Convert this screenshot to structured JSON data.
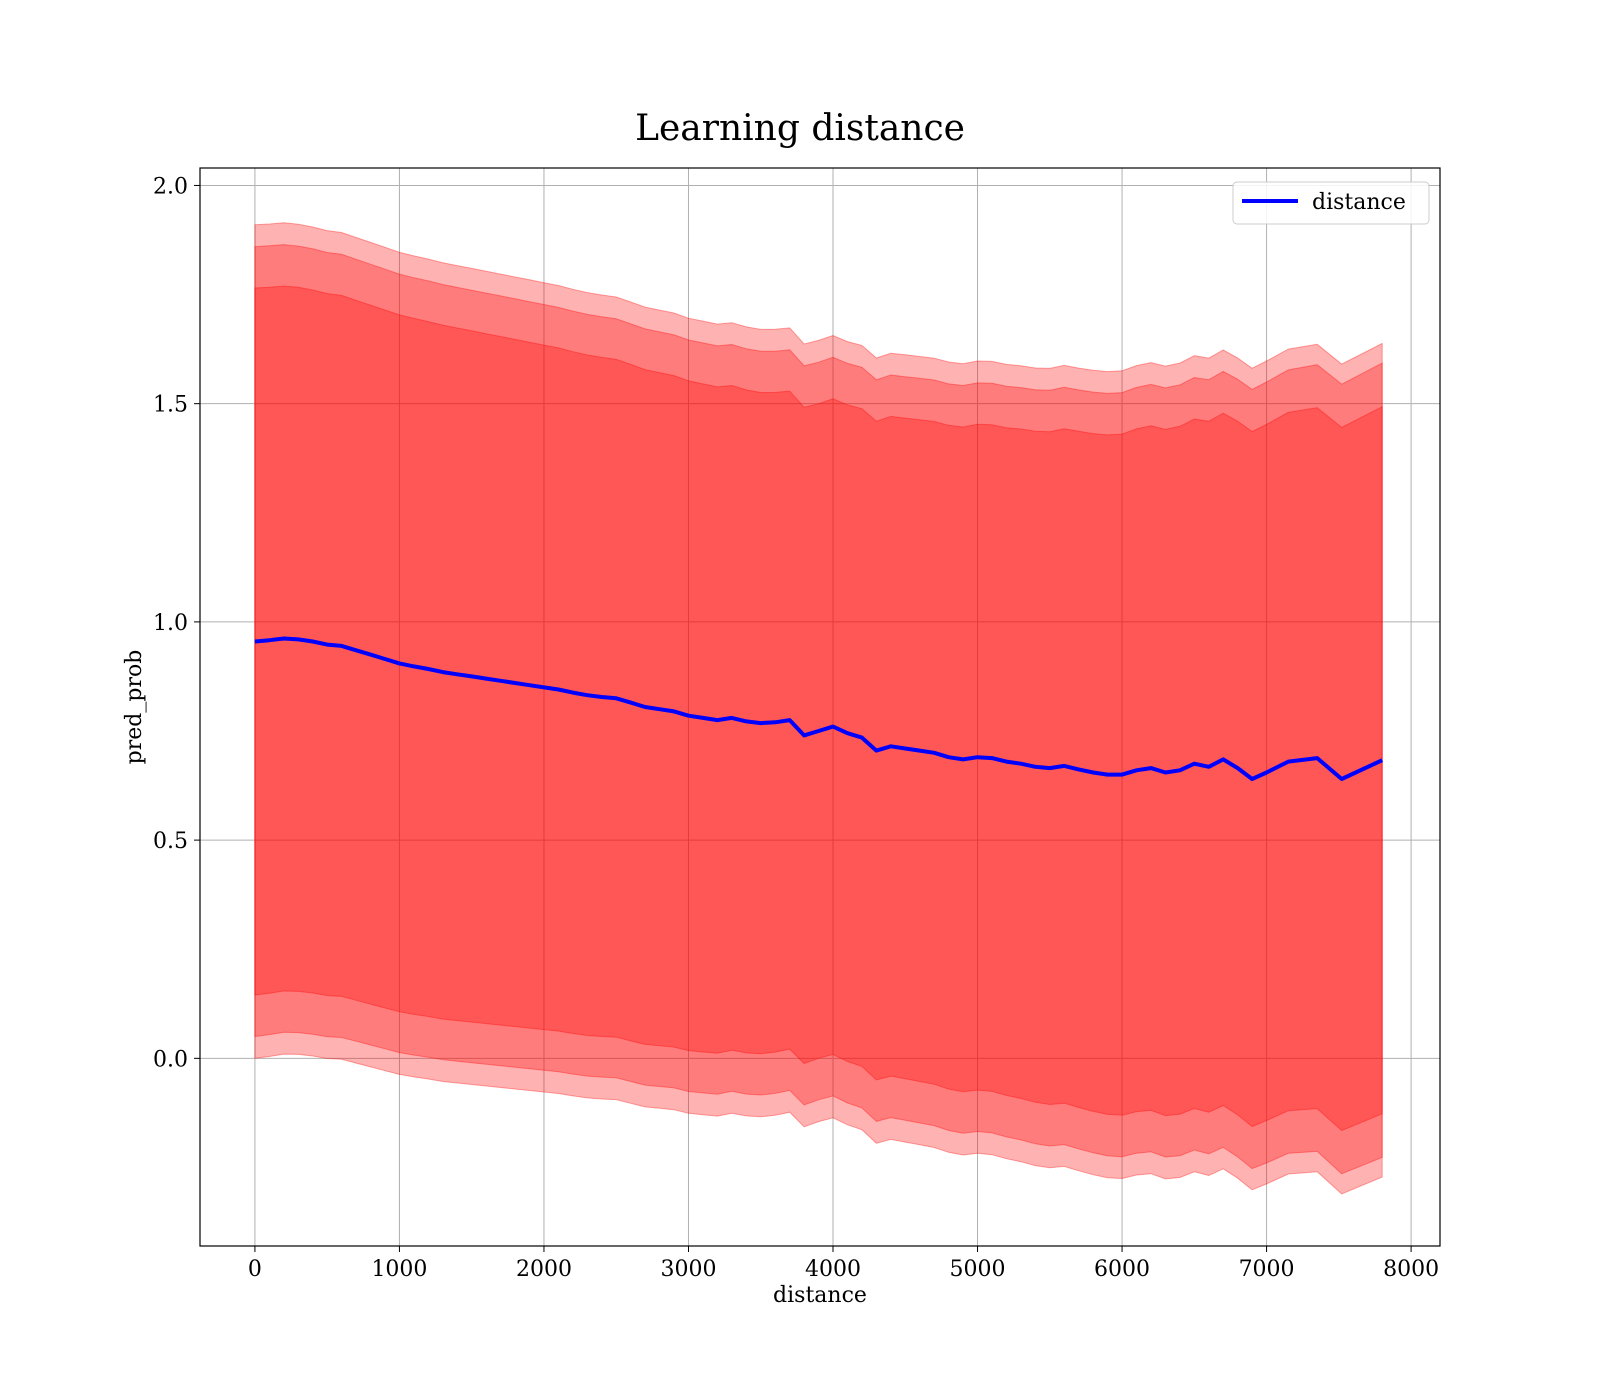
{
  "chart_data": {
    "type": "line",
    "title": "Learning distance",
    "xlabel": "distance",
    "ylabel": "pred_prob",
    "xlim": [
      -380,
      8200
    ],
    "ylim": [
      -0.43,
      2.04
    ],
    "xticks": [
      0,
      1000,
      2000,
      3000,
      4000,
      5000,
      6000,
      7000,
      8000
    ],
    "xtick_labels": [
      "0",
      "1000",
      "2000",
      "3000",
      "4000",
      "5000",
      "6000",
      "7000",
      "8000"
    ],
    "yticks": [
      0.0,
      0.5,
      1.0,
      1.5,
      2.0
    ],
    "ytick_labels": [
      "0.0",
      "0.5",
      "1.0",
      "1.5",
      "2.0"
    ],
    "grid": true,
    "legend": {
      "position": "upper right",
      "entries": [
        "distance"
      ]
    },
    "colors": {
      "line": "#0000ff",
      "band": "#ff0000"
    },
    "series": [
      {
        "name": "distance",
        "x": [
          0,
          100,
          200,
          300,
          400,
          500,
          600,
          700,
          800,
          900,
          1000,
          1100,
          1200,
          1300,
          1400,
          1500,
          1600,
          1700,
          1800,
          1900,
          2000,
          2100,
          2200,
          2300,
          2400,
          2500,
          2600,
          2700,
          2800,
          2900,
          3000,
          3100,
          3200,
          3300,
          3400,
          3500,
          3600,
          3700,
          3800,
          3900,
          4000,
          4100,
          4200,
          4300,
          4400,
          4500,
          4600,
          4700,
          4800,
          4900,
          5000,
          5100,
          5200,
          5300,
          5400,
          5500,
          5600,
          5700,
          5800,
          5900,
          6000,
          6100,
          6200,
          6300,
          6400,
          6500,
          6600,
          6700,
          6800,
          6900,
          7000,
          7150,
          7350,
          7520,
          7800
        ],
        "y": [
          0.955,
          0.958,
          0.962,
          0.96,
          0.955,
          0.948,
          0.945,
          0.935,
          0.925,
          0.915,
          0.905,
          0.898,
          0.892,
          0.885,
          0.88,
          0.875,
          0.87,
          0.865,
          0.86,
          0.855,
          0.85,
          0.845,
          0.838,
          0.832,
          0.828,
          0.825,
          0.815,
          0.805,
          0.8,
          0.795,
          0.785,
          0.78,
          0.775,
          0.78,
          0.772,
          0.768,
          0.77,
          0.775,
          0.74,
          0.75,
          0.76,
          0.745,
          0.735,
          0.705,
          0.715,
          0.71,
          0.705,
          0.7,
          0.69,
          0.685,
          0.69,
          0.688,
          0.68,
          0.675,
          0.668,
          0.665,
          0.67,
          0.662,
          0.655,
          0.65,
          0.65,
          0.66,
          0.665,
          0.655,
          0.66,
          0.675,
          0.668,
          0.685,
          0.665,
          0.64,
          0.655,
          0.68,
          0.688,
          0.64,
          0.683
        ]
      }
    ],
    "bands": [
      {
        "sigma": 3,
        "spread": [
          0.955,
          0.938,
          0.918,
          0.895,
          0.91,
          0.935,
          0.955
        ]
      },
      {
        "sigma": 2,
        "spread": [
          0.905,
          0.888,
          0.868,
          0.845,
          0.86,
          0.885,
          0.91
        ]
      },
      {
        "sigma": 1,
        "spread": [
          0.81,
          0.795,
          0.775,
          0.75,
          0.765,
          0.79,
          0.81
        ]
      }
    ]
  }
}
